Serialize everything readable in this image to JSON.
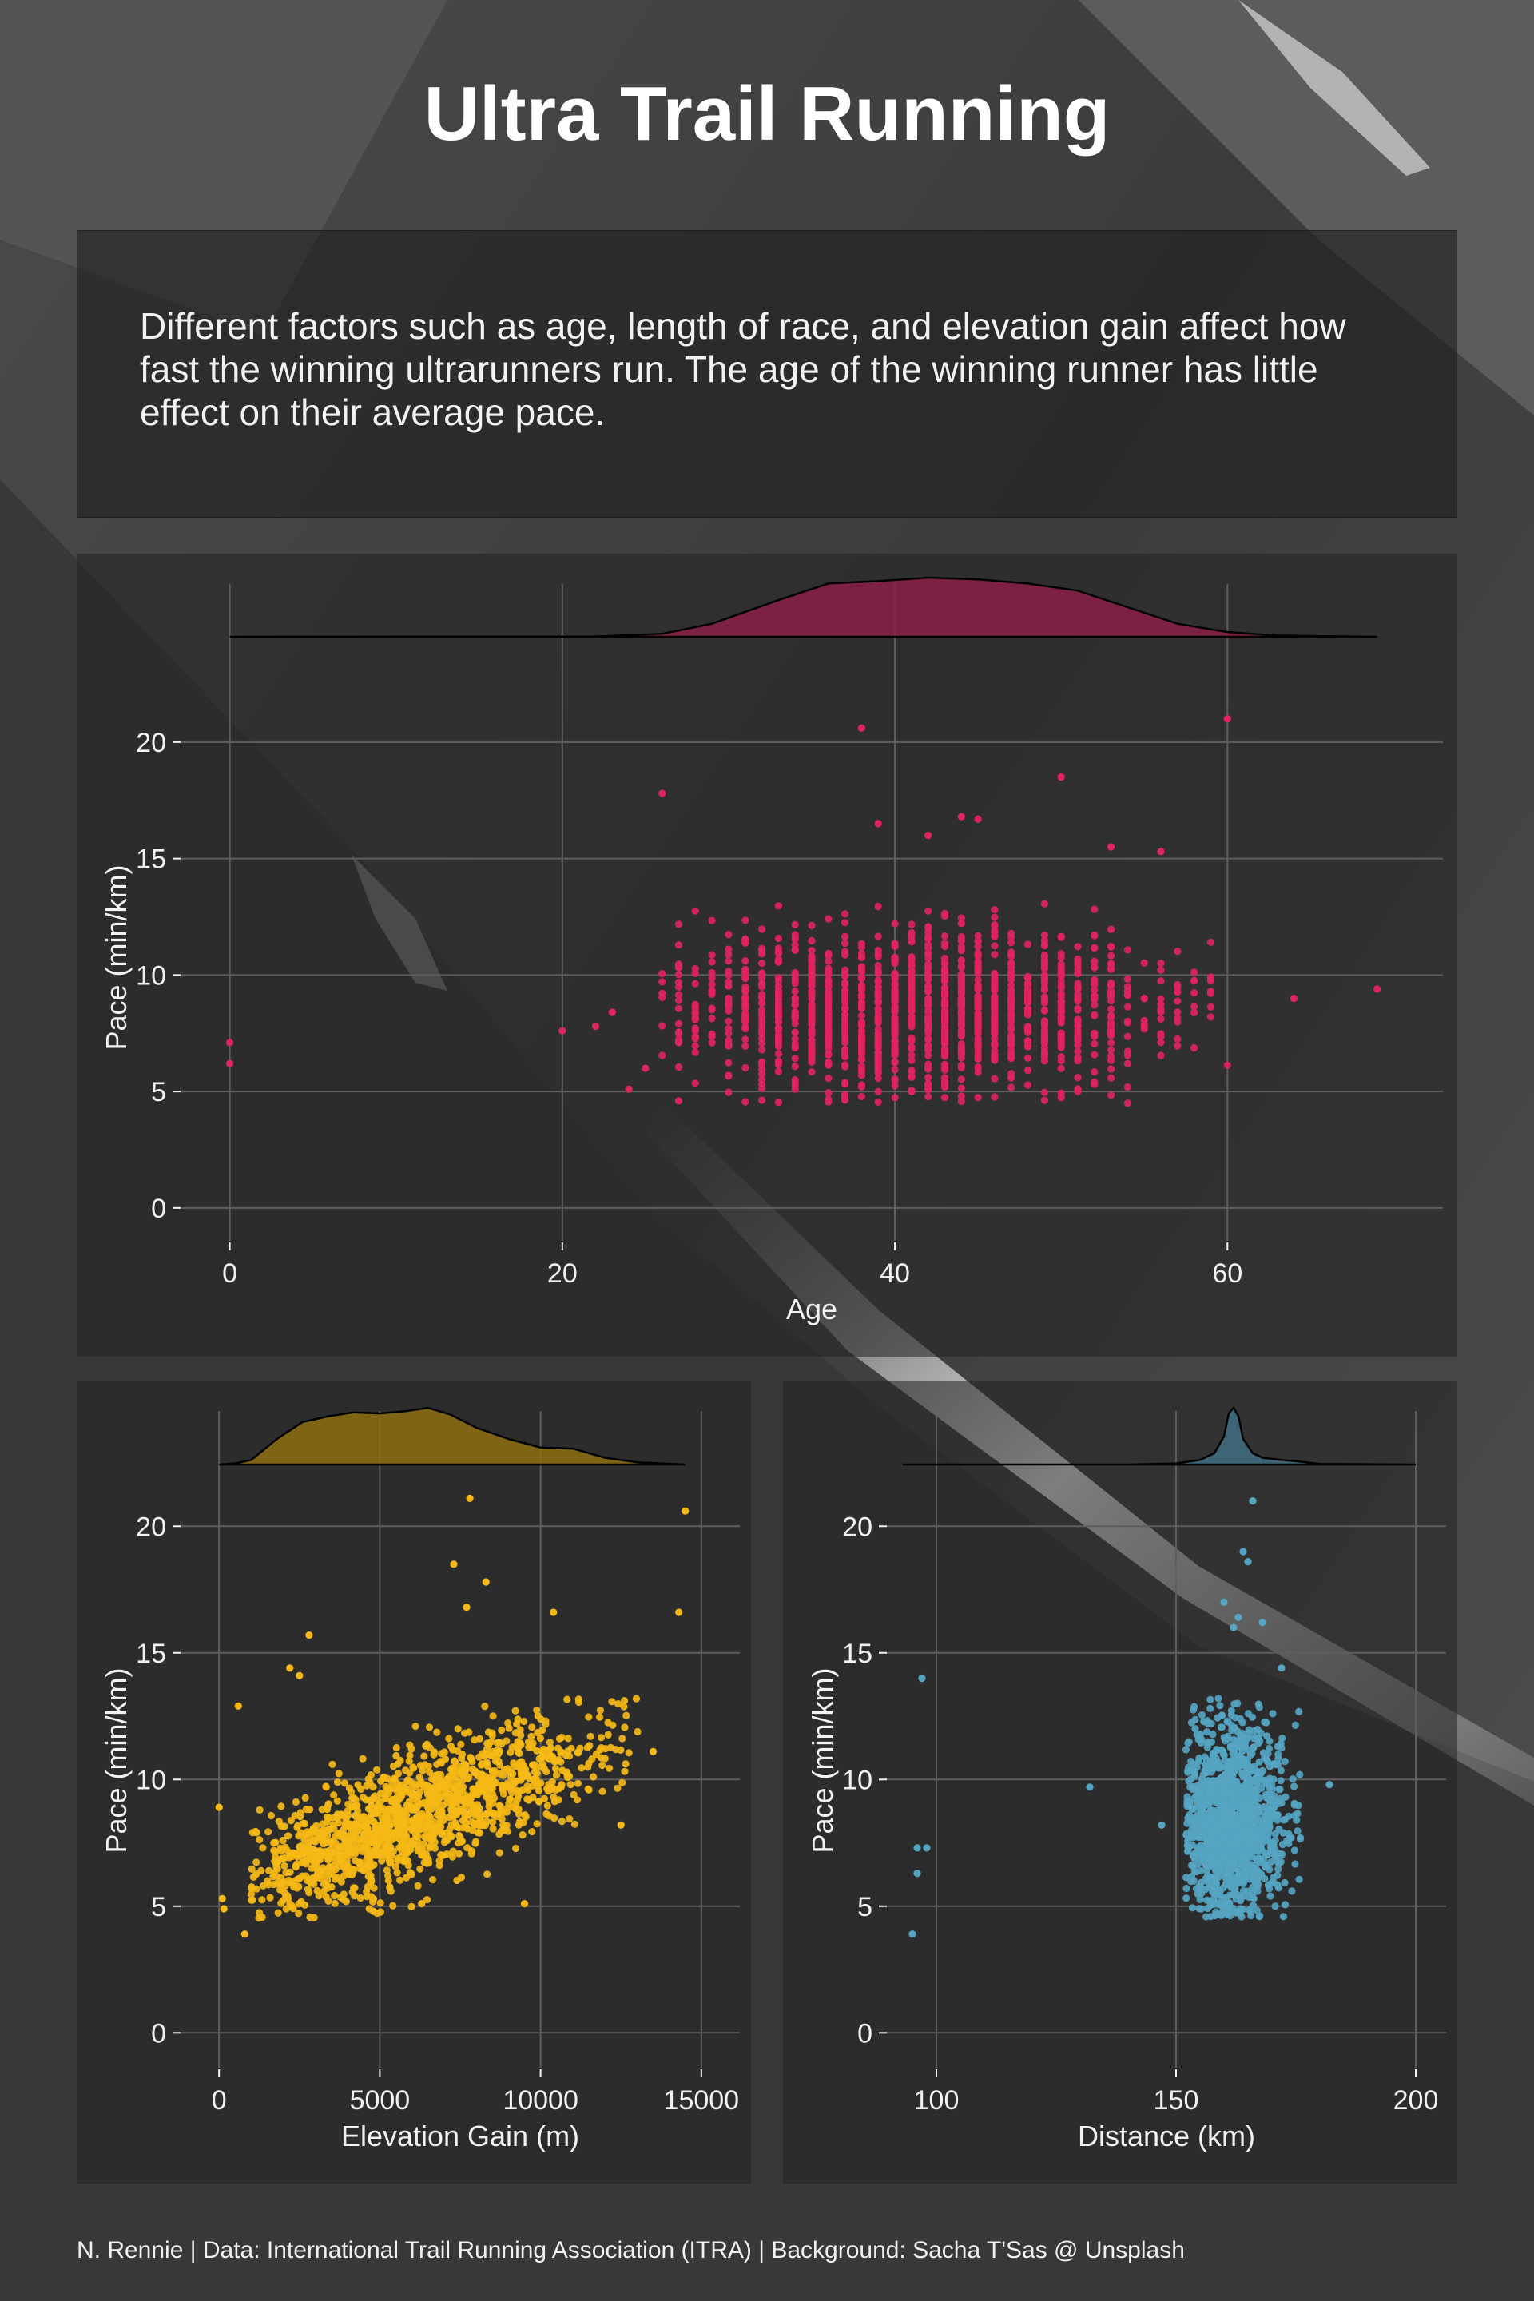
{
  "title": "Ultra Trail Running",
  "subtitle": "Different factors such as age, length of race, and elevation gain affect how fast the winning ultrarunners run. The age of the winning runner has little effect on their average pace.",
  "caption": "N. Rennie | Data: International Trail Running Association (ITRA) | Background: Sacha T'Sas @ Unsplash",
  "colors": {
    "age": "#e0245e",
    "age_density": "#8a1e46",
    "elevation": "#f5b816",
    "elevation_density": "#8e6f12",
    "distance": "#55a4c2",
    "distance_density": "#3f6e82",
    "grid": "#5e5e5e",
    "text": "#f2f2f2"
  },
  "chart_data": [
    {
      "id": "age",
      "type": "scatter",
      "xlabel": "Age",
      "ylabel": "Pace (min/km)",
      "xlim": [
        -2,
        72
      ],
      "ylim": [
        -1,
        22.5
      ],
      "xticks": [
        0,
        20,
        40,
        60
      ],
      "yticks": [
        0,
        5,
        10,
        15,
        20
      ],
      "grid": true,
      "marginal_density": {
        "x": [
          0,
          22,
          26,
          29,
          33,
          36,
          39,
          42,
          45,
          48,
          51,
          54,
          57,
          60,
          63,
          69
        ],
        "y": [
          0,
          0.005,
          0.05,
          0.22,
          0.62,
          0.9,
          0.94,
          1.0,
          0.97,
          0.9,
          0.78,
          0.5,
          0.22,
          0.08,
          0.02,
          0
        ]
      },
      "outliers": [
        {
          "x": 0,
          "y": 7.1
        },
        {
          "x": 0,
          "y": 6.2
        },
        {
          "x": 20,
          "y": 7.6
        },
        {
          "x": 22,
          "y": 7.8
        },
        {
          "x": 23,
          "y": 8.4
        },
        {
          "x": 24,
          "y": 5.1
        },
        {
          "x": 25,
          "y": 6.0
        },
        {
          "x": 26,
          "y": 17.8
        },
        {
          "x": 27,
          "y": 4.6
        },
        {
          "x": 38,
          "y": 20.6
        },
        {
          "x": 60,
          "y": 21.0
        },
        {
          "x": 50,
          "y": 18.5
        },
        {
          "x": 64,
          "y": 9.0
        },
        {
          "x": 69,
          "y": 9.4
        },
        {
          "x": 56,
          "y": 15.3
        },
        {
          "x": 44,
          "y": 16.8
        },
        {
          "x": 45,
          "y": 16.7
        },
        {
          "x": 42,
          "y": 16.0
        },
        {
          "x": 39,
          "y": 16.5
        },
        {
          "x": 53,
          "y": 15.5
        }
      ],
      "cluster": {
        "x_range": [
          26,
          60
        ],
        "x_peak": 41,
        "x_sd": 7,
        "y_min": 4.5,
        "y_mean": 8.5,
        "y_sd": 1.7,
        "n": 1450,
        "integer_x": true
      }
    },
    {
      "id": "elevation",
      "type": "scatter",
      "xlabel": "Elevation Gain (m)",
      "ylabel": "Pace (min/km)",
      "xlim": [
        -700,
        15700
      ],
      "ylim": [
        -1,
        22.5
      ],
      "xticks": [
        0,
        5000,
        10000,
        15000
      ],
      "yticks": [
        0,
        5,
        10,
        15,
        20
      ],
      "grid": true,
      "marginal_density": {
        "x": [
          0,
          500,
          1000,
          1800,
          2600,
          3400,
          4200,
          5000,
          5800,
          6500,
          7200,
          8000,
          9000,
          10000,
          11000,
          12000,
          13000,
          14500
        ],
        "y": [
          0,
          0.02,
          0.08,
          0.45,
          0.75,
          0.85,
          0.92,
          0.9,
          0.94,
          1.0,
          0.88,
          0.65,
          0.45,
          0.3,
          0.28,
          0.12,
          0.04,
          0
        ]
      },
      "outliers": [
        {
          "x": 0,
          "y": 8.9
        },
        {
          "x": 100,
          "y": 5.3
        },
        {
          "x": 150,
          "y": 4.9
        },
        {
          "x": 600,
          "y": 12.9
        },
        {
          "x": 800,
          "y": 3.9
        },
        {
          "x": 2200,
          "y": 14.4
        },
        {
          "x": 2500,
          "y": 14.1
        },
        {
          "x": 2800,
          "y": 15.7
        },
        {
          "x": 7800,
          "y": 21.1
        },
        {
          "x": 7300,
          "y": 18.5
        },
        {
          "x": 8300,
          "y": 17.8
        },
        {
          "x": 7700,
          "y": 16.8
        },
        {
          "x": 10400,
          "y": 16.6
        },
        {
          "x": 14500,
          "y": 20.6
        },
        {
          "x": 14300,
          "y": 16.6
        },
        {
          "x": 6300,
          "y": 5.1
        },
        {
          "x": 9500,
          "y": 5.1
        },
        {
          "x": 4800,
          "y": 4.8
        },
        {
          "x": 13500,
          "y": 11.1
        },
        {
          "x": 12500,
          "y": 8.2
        }
      ],
      "cluster": {
        "x_range": [
          1000,
          13200
        ],
        "x_peak": 6000,
        "x_sd": 2600,
        "y_min": 4.5,
        "y_base": 5.8,
        "y_slope": 0.00045,
        "y_sd": 1.15,
        "n": 1450,
        "integer_x": false
      }
    },
    {
      "id": "distance",
      "type": "scatter",
      "xlabel": "Distance (km)",
      "ylabel": "Pace (min/km)",
      "xlim": [
        93,
        203
      ],
      "ylim": [
        -1,
        22.5
      ],
      "xticks": [
        100,
        150,
        200
      ],
      "yticks": [
        0,
        5,
        10,
        15,
        20
      ],
      "grid": true,
      "marginal_density": {
        "x": [
          93,
          140,
          150,
          155,
          158,
          160,
          161,
          162,
          163,
          164,
          166,
          168,
          172,
          176,
          180,
          200
        ],
        "y": [
          0,
          0,
          0.02,
          0.08,
          0.2,
          0.5,
          0.9,
          1.0,
          0.85,
          0.45,
          0.2,
          0.12,
          0.08,
          0.05,
          0.01,
          0
        ]
      },
      "outliers": [
        {
          "x": 97,
          "y": 14.0
        },
        {
          "x": 96,
          "y": 7.3
        },
        {
          "x": 96,
          "y": 6.3
        },
        {
          "x": 95,
          "y": 3.9
        },
        {
          "x": 98,
          "y": 7.3
        },
        {
          "x": 132,
          "y": 9.7
        },
        {
          "x": 147,
          "y": 8.2
        },
        {
          "x": 182,
          "y": 9.8
        },
        {
          "x": 162,
          "y": 16.0
        },
        {
          "x": 164,
          "y": 19.0
        },
        {
          "x": 163,
          "y": 16.4
        },
        {
          "x": 168,
          "y": 16.2
        },
        {
          "x": 166,
          "y": 21.0
        },
        {
          "x": 172,
          "y": 14.4
        },
        {
          "x": 165,
          "y": 18.6
        },
        {
          "x": 160,
          "y": 17.0
        }
      ],
      "cluster": {
        "x_range": [
          152,
          176
        ],
        "x_peak": 161,
        "x_sd": 5,
        "y_min": 4.5,
        "y_mean": 8.3,
        "y_sd": 1.9,
        "n": 1350,
        "integer_x": false
      }
    }
  ]
}
